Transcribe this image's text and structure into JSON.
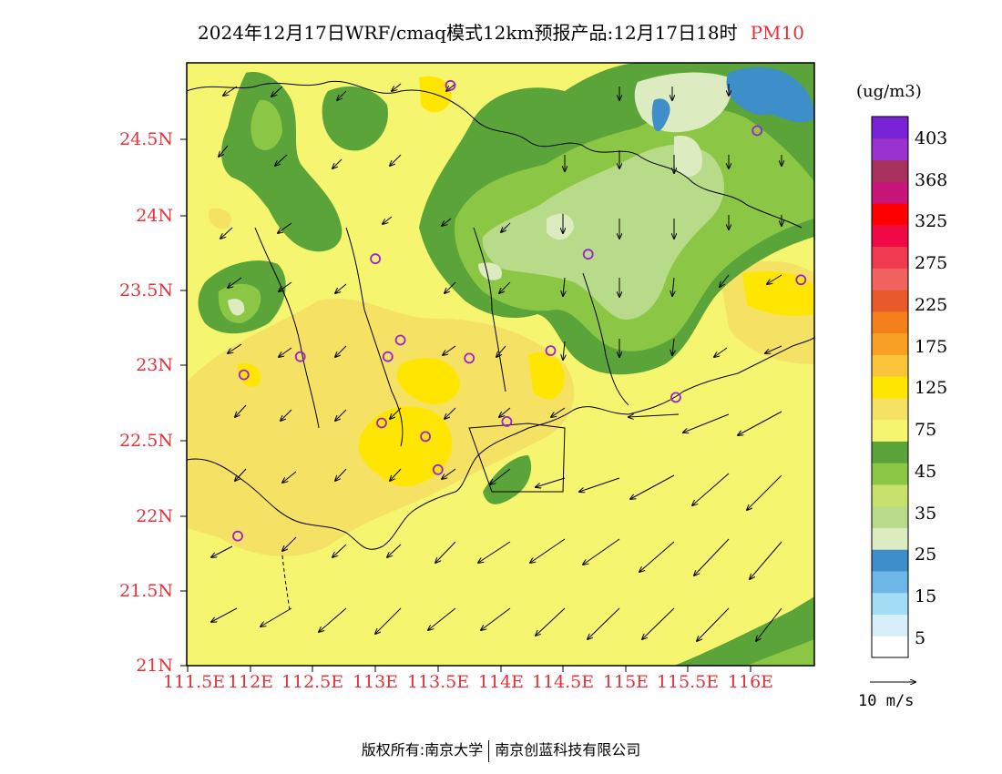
{
  "title": {
    "main": "2024年12月17日WRF/cmaq模式12km预报产品:12月17日18时",
    "variable": "PM10"
  },
  "axes": {
    "y_labels": [
      "24.5N",
      "24N",
      "23.5N",
      "23N",
      "22.5N",
      "22N",
      "21.5N",
      "21N"
    ],
    "x_labels": [
      "111.5E",
      "112E",
      "112.5E",
      "113E",
      "113.5E",
      "114E",
      "114.5E",
      "115E",
      "115.5E",
      "116E"
    ]
  },
  "colorbar": {
    "unit": "(ug/m3)",
    "labels": [
      "403",
      "368",
      "325",
      "275",
      "225",
      "175",
      "125",
      "75",
      "45",
      "35",
      "25",
      "15",
      "5"
    ],
    "colors": [
      "#ffffff",
      "#d6effa",
      "#a2dcf5",
      "#6cb7e6",
      "#3e8ec9",
      "#dcebc0",
      "#b8db8a",
      "#c8e06c",
      "#8cc645",
      "#5aa43a",
      "#f5f570",
      "#f5e264",
      "#ffe600",
      "#fbc53b",
      "#f7a023",
      "#f57f1a",
      "#e85a2a",
      "#f26360",
      "#ef3a50",
      "#f20a46",
      "#ff0000",
      "#c8157a",
      "#a8305e",
      "#9a32cf",
      "#7a22d6"
    ]
  },
  "wind_reference": {
    "label": "10 m/s"
  },
  "footer": {
    "left": "版权所有:南京大学",
    "right": "南京创蓝科技有限公司"
  },
  "colors": {
    "base": "#f5f570",
    "light_yellow": "#f5e264",
    "yellow": "#ffe600",
    "green_dark": "#5aa43a",
    "green": "#8cc645",
    "green_light": "#b8db8a",
    "pale": "#dcebc0",
    "blue": "#3e8ec9",
    "station_marker": "#9a22d6",
    "axis_label": "#e8303a"
  },
  "stations": [
    {
      "lon": 113.6,
      "lat": 24.85
    },
    {
      "lon": 116.05,
      "lat": 24.55
    },
    {
      "lon": 113.0,
      "lat": 23.7
    },
    {
      "lon": 114.7,
      "lat": 23.73
    },
    {
      "lon": 116.4,
      "lat": 23.56
    },
    {
      "lon": 111.95,
      "lat": 22.93
    },
    {
      "lon": 112.4,
      "lat": 23.05
    },
    {
      "lon": 113.1,
      "lat": 23.05
    },
    {
      "lon": 113.2,
      "lat": 23.16
    },
    {
      "lon": 113.75,
      "lat": 23.04
    },
    {
      "lon": 114.4,
      "lat": 23.09
    },
    {
      "lon": 115.4,
      "lat": 22.78
    },
    {
      "lon": 113.05,
      "lat": 22.61
    },
    {
      "lon": 113.4,
      "lat": 22.52
    },
    {
      "lon": 114.05,
      "lat": 22.62
    },
    {
      "lon": 113.5,
      "lat": 22.3
    },
    {
      "lon": 111.9,
      "lat": 21.86
    }
  ]
}
